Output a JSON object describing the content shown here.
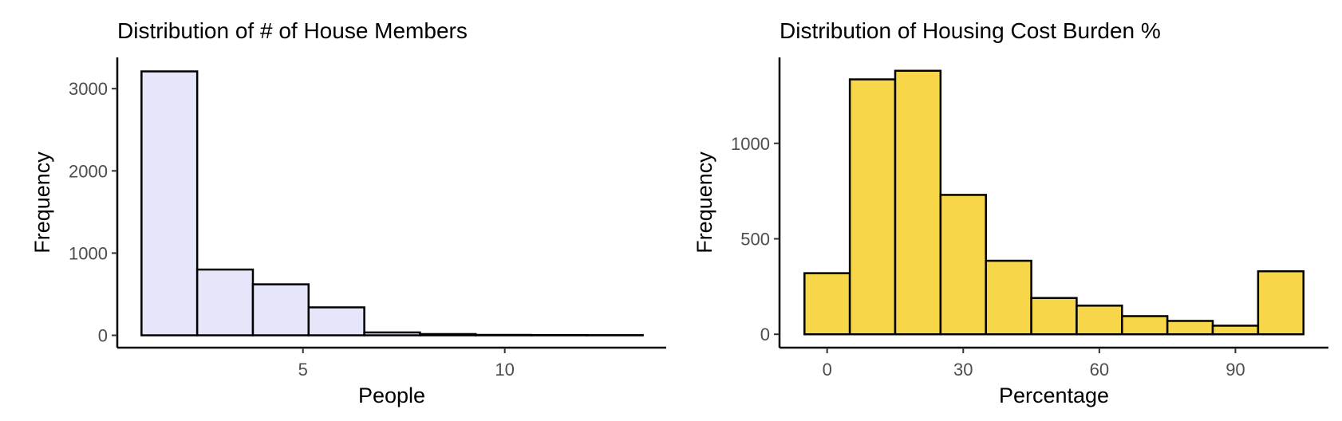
{
  "chart_data": [
    {
      "type": "bar",
      "title": "Distribution of # of House Members",
      "xlabel": "People",
      "ylabel": "Frequency",
      "fill_color": "#e6e6fa",
      "edge_color": "#000000",
      "bins": [
        {
          "x0": 1.0,
          "x1": 2.38,
          "value": 3210
        },
        {
          "x0": 2.38,
          "x1": 3.76,
          "value": 800
        },
        {
          "x0": 3.76,
          "x1": 5.14,
          "value": 620
        },
        {
          "x0": 5.14,
          "x1": 6.52,
          "value": 340
        },
        {
          "x0": 6.52,
          "x1": 7.9,
          "value": 35
        },
        {
          "x0": 7.9,
          "x1": 9.28,
          "value": 15
        },
        {
          "x0": 9.28,
          "x1": 10.66,
          "value": 5
        },
        {
          "x0": 10.66,
          "x1": 12.04,
          "value": 3
        },
        {
          "x0": 12.04,
          "x1": 13.42,
          "value": 2
        }
      ],
      "xlim": [
        0.4,
        14.0
      ],
      "ylim": [
        -150,
        3380
      ],
      "xticks": [
        5,
        10
      ],
      "xtick_labels": [
        "5",
        "10"
      ],
      "yticks": [
        0,
        1000,
        2000,
        3000
      ],
      "ytick_labels": [
        "0",
        "1000",
        "2000",
        "3000"
      ],
      "grid": false,
      "legend": "none"
    },
    {
      "type": "bar",
      "title": "Distribution of Housing Cost Burden %",
      "xlabel": "Percentage",
      "ylabel": "Frequency",
      "fill_color": "#f7d64a",
      "edge_color": "#000000",
      "bins": [
        {
          "x0": -5,
          "x1": 5,
          "value": 320
        },
        {
          "x0": 5,
          "x1": 15,
          "value": 1335
        },
        {
          "x0": 15,
          "x1": 25,
          "value": 1380
        },
        {
          "x0": 25,
          "x1": 35,
          "value": 730
        },
        {
          "x0": 35,
          "x1": 45,
          "value": 385
        },
        {
          "x0": 45,
          "x1": 55,
          "value": 190
        },
        {
          "x0": 55,
          "x1": 65,
          "value": 150
        },
        {
          "x0": 65,
          "x1": 75,
          "value": 95
        },
        {
          "x0": 75,
          "x1": 85,
          "value": 70
        },
        {
          "x0": 85,
          "x1": 95,
          "value": 45
        },
        {
          "x0": 95,
          "x1": 105,
          "value": 330
        }
      ],
      "xlim": [
        -10.5,
        110.5
      ],
      "ylim": [
        -70,
        1450
      ],
      "xticks": [
        0,
        30,
        60,
        90
      ],
      "xtick_labels": [
        "0",
        "30",
        "60",
        "90"
      ],
      "yticks": [
        0,
        500,
        1000
      ],
      "ytick_labels": [
        "0",
        "500",
        "1000"
      ],
      "grid": false,
      "legend": "none"
    }
  ]
}
